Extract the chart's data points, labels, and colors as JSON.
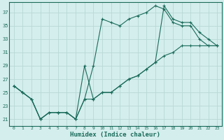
{
  "xlabel": "Humidex (Indice chaleur)",
  "bg_color": "#d4eeed",
  "grid_color": "#b8d8d5",
  "line_color": "#1a6b5a",
  "xlim": [
    -0.5,
    23.5
  ],
  "ylim": [
    20.0,
    38.5
  ],
  "xticks": [
    0,
    1,
    2,
    3,
    4,
    5,
    6,
    7,
    8,
    9,
    10,
    11,
    12,
    13,
    14,
    15,
    16,
    17,
    18,
    19,
    20,
    21,
    22,
    23
  ],
  "yticks": [
    21,
    23,
    25,
    27,
    29,
    31,
    33,
    35,
    37
  ],
  "line1_x": [
    0,
    1,
    2,
    3,
    4,
    5,
    6,
    7,
    8,
    9,
    10,
    11,
    12,
    13,
    14,
    15,
    16,
    17,
    18,
    19,
    20,
    21,
    22,
    23
  ],
  "line1_y": [
    26,
    25,
    24,
    21,
    22,
    22,
    22,
    21,
    24,
    29,
    36,
    35.5,
    35,
    36,
    36.5,
    37,
    38,
    37.5,
    35.5,
    35,
    35,
    33,
    32,
    32
  ],
  "line2_x": [
    0,
    1,
    2,
    3,
    4,
    5,
    6,
    7,
    8,
    9,
    10,
    11,
    12,
    13,
    14,
    15,
    16,
    17,
    18,
    19,
    20,
    21,
    22,
    23
  ],
  "line2_y": [
    26,
    25,
    24,
    21,
    22,
    22,
    22,
    21,
    24,
    24,
    25,
    25,
    26,
    27,
    27.5,
    28.5,
    29.5,
    30.5,
    31,
    32,
    32,
    32,
    32,
    32
  ],
  "line3_x": [
    0,
    1,
    2,
    3,
    4,
    5,
    6,
    7,
    8,
    9,
    10,
    11,
    12,
    13,
    14,
    15,
    16,
    17,
    18,
    19,
    20,
    21,
    22,
    23
  ],
  "line3_y": [
    26,
    25,
    24,
    21,
    22,
    22,
    22,
    21,
    29,
    24,
    25,
    25,
    26,
    27,
    27.5,
    28.5,
    29.5,
    38,
    36,
    35.5,
    35.5,
    34,
    33,
    32
  ]
}
